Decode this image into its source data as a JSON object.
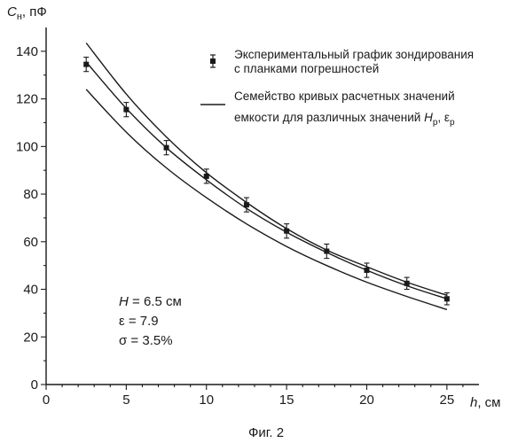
{
  "chart_data": {
    "type": "scatter",
    "ylabel_symbol": "C",
    "ylabel_sub": "н",
    "ylabel_unit": ", пФ",
    "xlabel_symbol": "h",
    "xlabel_unit": ", см",
    "xlim": [
      0,
      27
    ],
    "ylim": [
      0,
      150
    ],
    "xticks": [
      0,
      5,
      10,
      15,
      20,
      25
    ],
    "yticks": [
      0,
      20,
      40,
      60,
      80,
      100,
      120,
      140
    ],
    "grid": false,
    "legend_position": "top-right",
    "series": [
      {
        "kind": "points-with-error-bars",
        "x": [
          2.5,
          5,
          7.5,
          10,
          12.5,
          15,
          17.5,
          20,
          22.5,
          25
        ],
        "y": [
          134.5,
          115.5,
          99.5,
          87.5,
          75.5,
          64.5,
          56,
          48,
          42.5,
          36
        ],
        "err": [
          3,
          3,
          3,
          3,
          3,
          3,
          3,
          3,
          2.5,
          2.5
        ]
      },
      {
        "kind": "line",
        "x": [
          2.5,
          5,
          7.5,
          10,
          12.5,
          15,
          17.5,
          20,
          22.5,
          25
        ],
        "y": [
          143.5,
          122,
          104,
          89,
          76.5,
          65.5,
          56.5,
          49.5,
          43,
          37.5
        ]
      },
      {
        "kind": "line",
        "x": [
          2.5,
          5,
          7.5,
          10,
          12.5,
          15,
          17.5,
          20,
          22.5,
          25
        ],
        "y": [
          135.5,
          116,
          99.5,
          86,
          74,
          64,
          55.5,
          48,
          41.5,
          36
        ]
      },
      {
        "kind": "line",
        "x": [
          2.5,
          5,
          7.5,
          10,
          12.5,
          15,
          17.5,
          20,
          22.5,
          25
        ],
        "y": [
          124,
          106,
          91,
          78.5,
          67.5,
          58,
          50,
          43,
          37,
          31.5
        ]
      }
    ],
    "legend": {
      "points_line1": "Экспериментальный график зондирования",
      "points_line2": "с планками погрешностей",
      "curves_line1": "Семейство кривых расчетных значений",
      "curves_line2_prefix": "емкости для различных значений ",
      "curves_H": "H",
      "curves_H_sub": "р",
      "curves_sep": ", ε",
      "curves_eps_sub": "р"
    },
    "annotations": {
      "H_symbol": "H",
      "H_value": " = 6.5 см",
      "epsilon": "ε = 7.9",
      "sigma": "σ = 3.5%"
    },
    "caption": "Фиг. 2"
  }
}
